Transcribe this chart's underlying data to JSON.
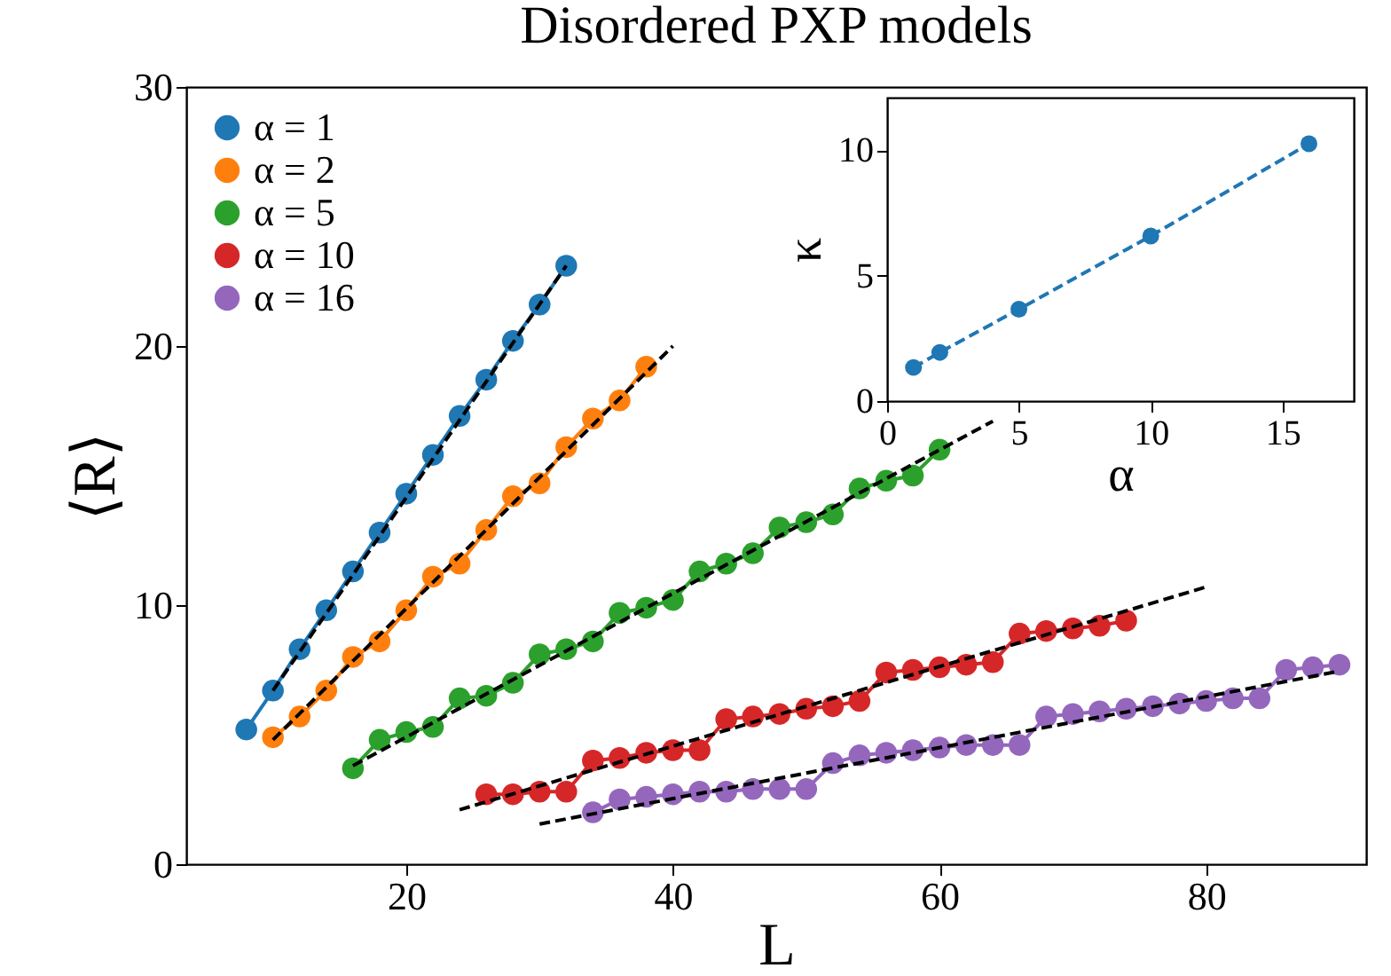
{
  "chart_data": [
    {
      "type": "line",
      "title": "Disordered PXP models",
      "xlabel": "L",
      "ylabel": "⟨R⟩",
      "xlim": [
        3.5,
        92
      ],
      "ylim": [
        0,
        30
      ],
      "xticks": [
        20,
        40,
        60,
        80
      ],
      "yticks": [
        0,
        10,
        20,
        30
      ],
      "legend": "top left",
      "series": [
        {
          "name": "α = 1",
          "color": "#1f77b4",
          "marker": "circle",
          "line_style": "solid",
          "x": [
            8,
            10,
            12,
            14,
            16,
            18,
            20,
            22,
            24,
            26,
            28,
            30,
            32
          ],
          "values": [
            5.2,
            6.7,
            8.3,
            9.8,
            11.3,
            12.8,
            14.3,
            15.8,
            17.3,
            18.7,
            20.2,
            21.6,
            23.1
          ]
        },
        {
          "name": "α = 2",
          "color": "#ff7f0e",
          "marker": "circle",
          "line_style": "solid",
          "x": [
            10,
            12,
            14,
            16,
            18,
            20,
            22,
            24,
            26,
            28,
            30,
            32,
            34,
            36,
            38
          ],
          "values": [
            4.9,
            5.7,
            6.7,
            8.0,
            8.6,
            9.8,
            11.1,
            11.6,
            12.9,
            14.2,
            14.7,
            16.1,
            17.2,
            17.9,
            19.2
          ]
        },
        {
          "name": "α = 5",
          "color": "#2ca02c",
          "marker": "circle",
          "line_style": "solid",
          "x": [
            16,
            18,
            20,
            22,
            24,
            26,
            28,
            30,
            32,
            34,
            36,
            38,
            40,
            42,
            44,
            46,
            48,
            50,
            52,
            54,
            56,
            58,
            60
          ],
          "values": [
            3.7,
            4.8,
            5.1,
            5.3,
            6.4,
            6.5,
            7.0,
            8.1,
            8.3,
            8.6,
            9.7,
            9.9,
            10.2,
            11.3,
            11.6,
            12.0,
            13.0,
            13.2,
            13.5,
            14.5,
            14.8,
            15.0,
            16.0
          ]
        },
        {
          "name": "α = 10",
          "color": "#d62728",
          "marker": "circle",
          "line_style": "solid",
          "x": [
            26,
            28,
            30,
            32,
            34,
            36,
            38,
            40,
            42,
            44,
            46,
            48,
            50,
            52,
            54,
            56,
            58,
            60,
            62,
            64,
            66,
            68,
            70,
            72,
            74
          ],
          "values": [
            2.7,
            2.7,
            2.8,
            2.8,
            4.0,
            4.1,
            4.3,
            4.4,
            4.4,
            5.6,
            5.7,
            5.8,
            6.0,
            6.1,
            6.3,
            7.4,
            7.5,
            7.6,
            7.7,
            7.8,
            8.9,
            9.0,
            9.1,
            9.2,
            9.4
          ]
        },
        {
          "name": "α = 16",
          "color": "#9467bd",
          "marker": "circle",
          "line_style": "solid",
          "x": [
            34,
            36,
            38,
            40,
            42,
            44,
            46,
            48,
            50,
            52,
            54,
            56,
            58,
            60,
            62,
            64,
            66,
            68,
            70,
            72,
            74,
            76,
            78,
            80,
            82,
            84,
            86,
            88,
            90
          ],
          "values": [
            2.0,
            2.5,
            2.6,
            2.7,
            2.8,
            2.8,
            2.9,
            2.9,
            2.9,
            3.9,
            4.2,
            4.3,
            4.4,
            4.5,
            4.6,
            4.6,
            4.6,
            5.7,
            5.8,
            5.9,
            6.0,
            6.1,
            6.2,
            6.3,
            6.4,
            6.4,
            7.5,
            7.6,
            7.7
          ]
        },
        {
          "type": "line",
          "color": "#000000",
          "marker": "none",
          "line_style": "dashed",
          "x": [
            10,
            32
          ],
          "values": [
            6.7,
            23.1
          ]
        },
        {
          "type": "line",
          "color": "#000000",
          "marker": "none",
          "line_style": "dashed",
          "x": [
            10,
            40
          ],
          "values": [
            4.8,
            20.0
          ]
        },
        {
          "type": "line",
          "color": "#000000",
          "marker": "none",
          "line_style": "dashed",
          "x": [
            16,
            64
          ],
          "values": [
            3.8,
            17.1
          ]
        },
        {
          "type": "line",
          "color": "#000000",
          "marker": "none",
          "line_style": "dashed",
          "x": [
            24,
            80
          ],
          "values": [
            2.1,
            10.7
          ]
        },
        {
          "type": "line",
          "color": "#000000",
          "marker": "none",
          "line_style": "dashed",
          "x": [
            30,
            90
          ],
          "values": [
            1.55,
            7.45
          ]
        }
      ]
    },
    {
      "type": "line",
      "xlabel": "α",
      "ylabel": "κ",
      "xlim": [
        0,
        17.7
      ],
      "ylim": [
        0,
        12.1
      ],
      "xticks": [
        0,
        5,
        10,
        15
      ],
      "yticks": [
        0,
        5,
        10
      ],
      "series": [
        {
          "color": "#1f77b4",
          "marker": "circle",
          "line_style": "dashed",
          "x": [
            1,
            2,
            5,
            10,
            16
          ],
          "values": [
            1.34,
            1.94,
            3.66,
            6.58,
            10.26
          ]
        }
      ]
    }
  ]
}
